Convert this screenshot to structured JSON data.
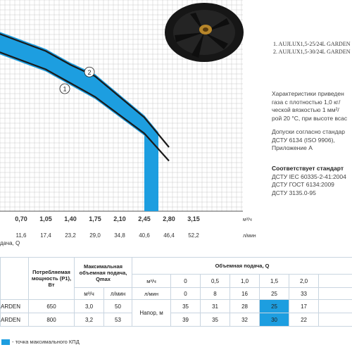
{
  "chart_data": {
    "type": "line",
    "x_ticks_m3h": [
      "0,70",
      "1,05",
      "1,40",
      "1,75",
      "2,10",
      "2,45",
      "2,80",
      "3,15"
    ],
    "x_unit_m3h": "м³/ч",
    "x_ticks_lmin": [
      "11,6",
      "17,4",
      "23,2",
      "29,0",
      "34,8",
      "40,6",
      "46,4",
      "52,2"
    ],
    "x_unit_lmin": "л/мин",
    "xlabel": "дача, Q",
    "series": [
      {
        "name": "1",
        "x": [
          0.35,
          0.7,
          1.05,
          1.4,
          1.75,
          2.1,
          2.45,
          2.8
        ],
        "y": [
          35,
          33,
          31,
          28,
          25,
          21,
          17,
          11
        ]
      },
      {
        "name": "2",
        "x": [
          0.35,
          0.7,
          1.05,
          1.4,
          1.75,
          2.1,
          2.45,
          2.8
        ],
        "y": [
          39,
          37,
          35,
          32,
          29.5,
          25,
          20.5,
          14
        ]
      }
    ],
    "grid": true,
    "colors": {
      "band": "#1d9ee0",
      "curve": "#1a1a1a",
      "grid": "#bcbcbc"
    }
  },
  "legend": {
    "item1": "1.  AUJLUX1,5-25/24L GARDEN",
    "item2": "2.  AUJLUX1,5-30/24L GARDEN"
  },
  "info": {
    "line1": "Характеристики приведен",
    "line2": "газа с плотностью 1,0 кг/",
    "line3": "ческой вязкостью 1 мм²/",
    "line4": "рой 20 °С, при высоте всас",
    "line5": "Допуски согласно стандар",
    "line6": "ДСТУ 6134 (ISO 9906),",
    "line7": "Приложение А",
    "line8": "Соответствует стандарт",
    "line9": "ДСТУ IEC 60335-2-41:2004",
    "line10": "ДСТУ ГОСТ 6134:2009",
    "line11": "ДСТУ 3135.0-95"
  },
  "table": {
    "h_power": "Потребляемая мощность (P1), Вт",
    "h_qmax": "Максимальная объемная подача, Qmax",
    "h_flow": "Объемная подача, Q",
    "unit_m3h": "м³/ч",
    "unit_lmin": "л/мин",
    "flow_m3h": [
      "0",
      "0,5",
      "1,0",
      "1,5",
      "2,0"
    ],
    "flow_lmin": [
      "0",
      "8",
      "16",
      "25",
      "33"
    ],
    "rows": [
      {
        "model": "ARDEN",
        "power": "650",
        "q_m3h": "3,0",
        "q_lmin": "50",
        "head_label": "Напор, м",
        "heads": [
          "35",
          "31",
          "28",
          "25",
          "17"
        ]
      },
      {
        "model": "ARDEN",
        "power": "800",
        "q_m3h": "3,2",
        "q_lmin": "53",
        "head_label": "",
        "heads": [
          "39",
          "35",
          "32",
          "30",
          "22"
        ]
      }
    ]
  },
  "footer": "- точка максимального КПД"
}
